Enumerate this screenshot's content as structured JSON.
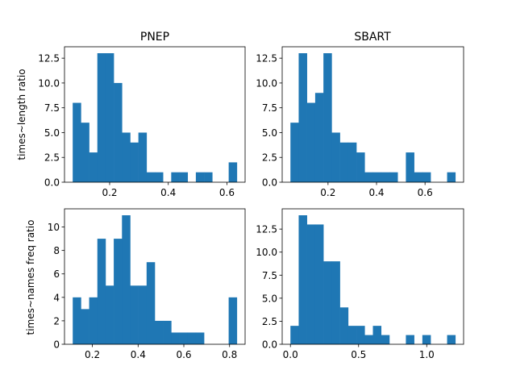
{
  "chart_data": [
    {
      "type": "bar",
      "title": "PNEP",
      "xlabel": "",
      "ylabel": "times~length ratio",
      "color": "#1f77b4",
      "bin_edges": [
        0.074,
        0.102,
        0.13,
        0.158,
        0.186,
        0.214,
        0.242,
        0.27,
        0.298,
        0.326,
        0.354,
        0.382,
        0.41,
        0.438,
        0.466,
        0.494,
        0.522,
        0.55,
        0.578,
        0.606,
        0.634
      ],
      "values": [
        8,
        6,
        3,
        13,
        13,
        10,
        5,
        4,
        5,
        1,
        1,
        0,
        1,
        1,
        0,
        1,
        1,
        0,
        0,
        2
      ],
      "xlim": [
        0.046,
        0.662
      ],
      "ylim": [
        0,
        13.65
      ],
      "xticks": [
        {
          "v": 0.2,
          "label": "0.2"
        },
        {
          "v": 0.4,
          "label": "0.4"
        },
        {
          "v": 0.6,
          "label": "0.6"
        }
      ],
      "yticks": [
        {
          "v": 0,
          "label": "0.0"
        },
        {
          "v": 2.5,
          "label": "2.5"
        },
        {
          "v": 5,
          "label": "5.0"
        },
        {
          "v": 7.5,
          "label": "7.5"
        },
        {
          "v": 10,
          "label": "10.0"
        },
        {
          "v": 12.5,
          "label": "12.5"
        }
      ]
    },
    {
      "type": "bar",
      "title": "SBART",
      "xlabel": "",
      "ylabel": "",
      "color": "#1f77b4",
      "bin_edges": [
        0.045,
        0.079,
        0.113,
        0.147,
        0.181,
        0.215,
        0.249,
        0.283,
        0.317,
        0.351,
        0.385,
        0.419,
        0.453,
        0.487,
        0.521,
        0.555,
        0.589,
        0.623,
        0.657,
        0.691,
        0.725
      ],
      "values": [
        6,
        13,
        8,
        9,
        13,
        5,
        4,
        4,
        3,
        1,
        1,
        1,
        1,
        0,
        3,
        1,
        1,
        0,
        0,
        1
      ],
      "xlim": [
        0.011,
        0.759
      ],
      "ylim": [
        0,
        13.65
      ],
      "xticks": [
        {
          "v": 0.2,
          "label": "0.2"
        },
        {
          "v": 0.4,
          "label": "0.4"
        },
        {
          "v": 0.6,
          "label": "0.6"
        }
      ],
      "yticks": [
        {
          "v": 0,
          "label": "0.0"
        },
        {
          "v": 2.5,
          "label": "2.5"
        },
        {
          "v": 5,
          "label": "5.0"
        },
        {
          "v": 7.5,
          "label": "7.5"
        },
        {
          "v": 10,
          "label": "10.0"
        },
        {
          "v": 12.5,
          "label": "12.5"
        }
      ]
    },
    {
      "type": "bar",
      "title": "",
      "xlabel": "",
      "ylabel": "times~names freq ratio",
      "color": "#1f77b4",
      "bin_edges": [
        0.114,
        0.1499,
        0.1858,
        0.2217,
        0.2576,
        0.2935,
        0.3294,
        0.3653,
        0.4012,
        0.4371,
        0.473,
        0.5089,
        0.5448,
        0.5807,
        0.6166,
        0.6525,
        0.6884,
        0.7243,
        0.7602,
        0.7961,
        0.832
      ],
      "values": [
        4,
        3,
        4,
        9,
        5,
        9,
        11,
        5,
        5,
        7,
        2,
        2,
        1,
        1,
        1,
        1,
        0,
        0,
        0,
        4
      ],
      "xlim": [
        0.078,
        0.868
      ],
      "ylim": [
        0,
        11.55
      ],
      "xticks": [
        {
          "v": 0.2,
          "label": "0.2"
        },
        {
          "v": 0.4,
          "label": "0.4"
        },
        {
          "v": 0.6,
          "label": "0.6"
        },
        {
          "v": 0.8,
          "label": "0.8"
        }
      ],
      "yticks": [
        {
          "v": 0,
          "label": "0"
        },
        {
          "v": 2,
          "label": "2"
        },
        {
          "v": 4,
          "label": "4"
        },
        {
          "v": 6,
          "label": "6"
        },
        {
          "v": 8,
          "label": "8"
        },
        {
          "v": 10,
          "label": "10"
        }
      ]
    },
    {
      "type": "bar",
      "title": "",
      "xlabel": "",
      "ylabel": "",
      "color": "#1f77b4",
      "bin_edges": [
        0.0,
        0.0605,
        0.121,
        0.1815,
        0.242,
        0.3025,
        0.363,
        0.4235,
        0.484,
        0.5445,
        0.605,
        0.6655,
        0.726,
        0.7865,
        0.847,
        0.9075,
        0.968,
        1.0285,
        1.089,
        1.1495,
        1.21
      ],
      "values": [
        2,
        14,
        13,
        13,
        9,
        9,
        4,
        2,
        2,
        1,
        2,
        1,
        0,
        0,
        1,
        0,
        1,
        0,
        0,
        1
      ],
      "xlim": [
        -0.0605,
        1.2705
      ],
      "ylim": [
        0,
        14.7
      ],
      "xticks": [
        {
          "v": 0.0,
          "label": "0.0"
        },
        {
          "v": 0.5,
          "label": "0.5"
        },
        {
          "v": 1.0,
          "label": "1.0"
        }
      ],
      "yticks": [
        {
          "v": 0,
          "label": "0.0"
        },
        {
          "v": 2.5,
          "label": "2.5"
        },
        {
          "v": 5,
          "label": "5.0"
        },
        {
          "v": 7.5,
          "label": "7.5"
        },
        {
          "v": 10,
          "label": "10.0"
        },
        {
          "v": 12.5,
          "label": "12.5"
        }
      ]
    }
  ]
}
